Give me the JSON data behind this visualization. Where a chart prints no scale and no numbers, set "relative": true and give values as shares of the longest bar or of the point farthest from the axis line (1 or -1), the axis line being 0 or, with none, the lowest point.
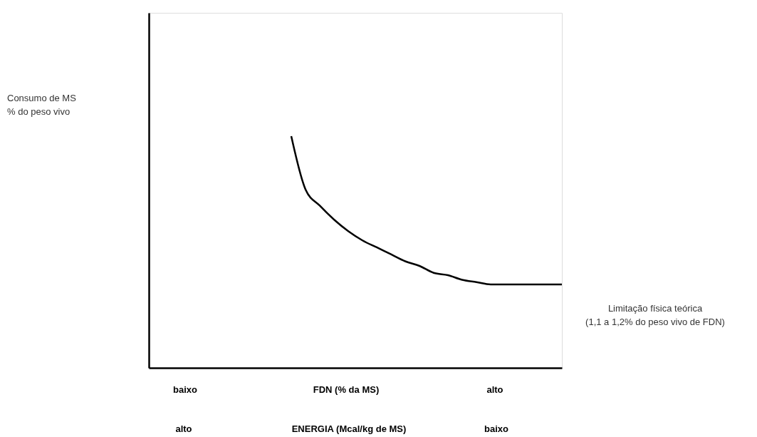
{
  "chart_data": {
    "type": "line",
    "relative": true,
    "tick_labels": false,
    "xlabel": "FDN (% da MS)",
    "categories": [
      null,
      null,
      null,
      null,
      null,
      null,
      null,
      null,
      null,
      null,
      null,
      null,
      null,
      null,
      null,
      null,
      null,
      null,
      null,
      null,
      null,
      null,
      null,
      null,
      null,
      null,
      null,
      null,
      null,
      null
    ],
    "values": [
      null,
      null,
      null,
      null,
      null,
      null,
      null,
      null,
      null,
      null,
      1.0,
      0.77,
      0.7,
      0.64,
      0.59,
      0.55,
      0.52,
      0.49,
      0.46,
      0.44,
      0.41,
      0.4,
      0.38,
      0.37,
      0.36,
      0.36,
      0.36,
      0.36,
      0.36,
      0.36
    ],
    "color": "#000000",
    "annotations": [
      "Consumo de MS\n% do peso vivo",
      "baixo",
      "alto",
      "alto",
      "ENERGIA (Mcal/kg de MS)",
      "baixo",
      "Limitação física teórica\n(1,1 a 1,2% do peso vivo de FDN)"
    ]
  }
}
